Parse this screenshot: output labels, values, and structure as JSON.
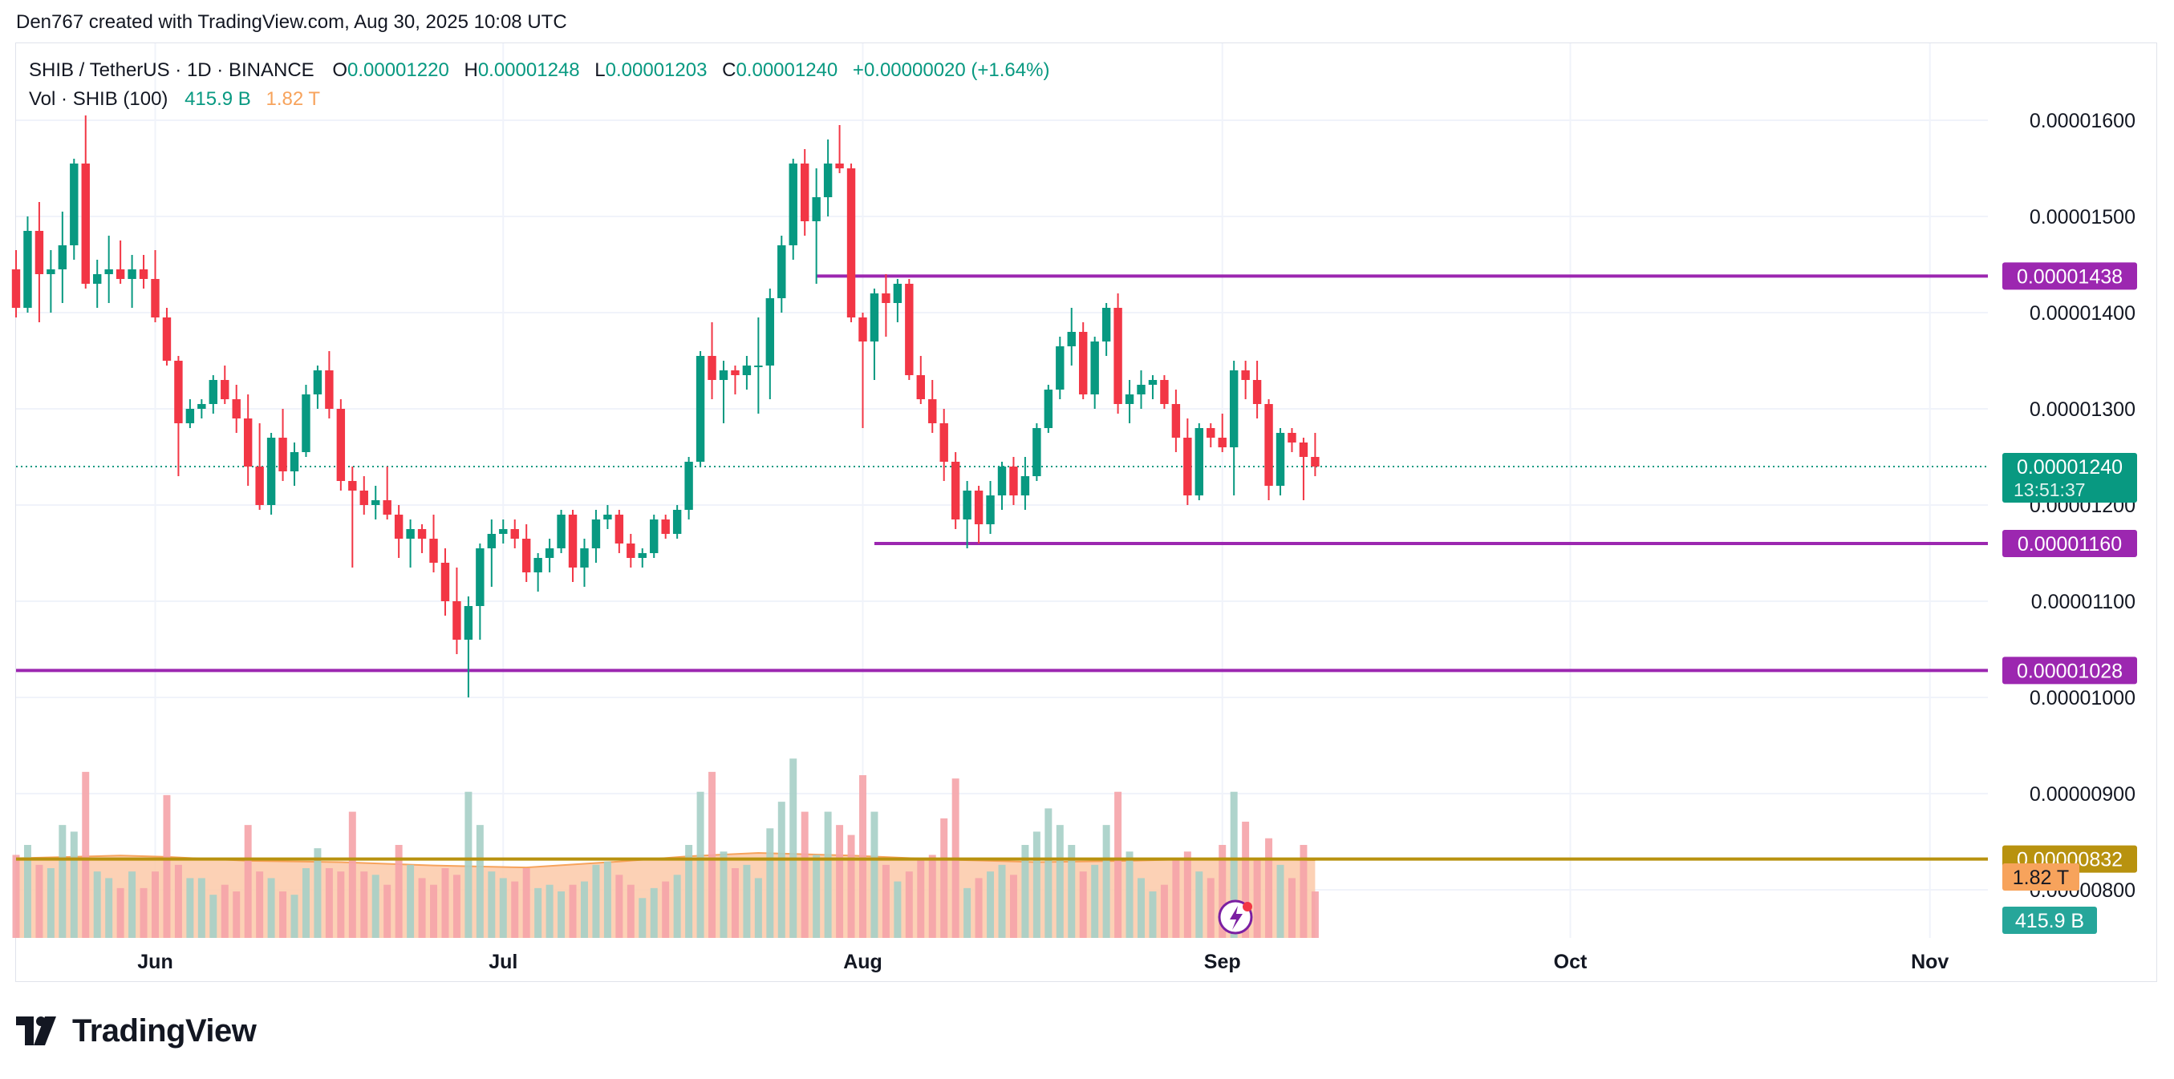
{
  "credit": "Den767 created with TradingView.com, Aug 30, 2025 10:08 UTC",
  "legend": {
    "symbol": "SHIB / TetherUS · 1D · BINANCE",
    "o_label": "O",
    "o_value": "0.00001220",
    "h_label": "H",
    "h_value": "0.00001248",
    "l_label": "L",
    "l_value": "0.00001203",
    "c_label": "C",
    "c_value": "0.00001240",
    "change": "+0.00000020 (+1.64%)",
    "vol_label": "Vol · SHIB (100)",
    "vol_buy": "415.9 B",
    "vol_ma": "1.82 T"
  },
  "logo_text": "TradingView",
  "colors": {
    "up": "#089981",
    "down": "#f23645",
    "vol_up": "#a6cfc6",
    "vol_down": "#f5a3a9",
    "level": "#9c27b0",
    "gold": "#b8920f",
    "ma_fill": "#fcc9a8",
    "ma_line": "#f7a35c"
  },
  "chart_data": {
    "type": "candlestick",
    "interval": "1D",
    "y_axis": {
      "min": 7.5e-06,
      "max": 1.68e-05,
      "ticks": [
        "0.00001600",
        "0.00001500",
        "0.00001400",
        "0.00001300",
        "0.00001200",
        "0.00001100",
        "0.00001000",
        "0.00000900",
        "0.00000800"
      ]
    },
    "x_axis": {
      "start": "2025-05-20",
      "end": "2025-11-06",
      "ticks": [
        {
          "date": "2025-06-01",
          "label": "Jun"
        },
        {
          "date": "2025-07-01",
          "label": "Jul"
        },
        {
          "date": "2025-08-01",
          "label": "Aug"
        },
        {
          "date": "2025-09-01",
          "label": "Sep"
        },
        {
          "date": "2025-10-01",
          "label": "Oct"
        },
        {
          "date": "2025-11-01",
          "label": "Nov"
        }
      ]
    },
    "price_labels": [
      {
        "value": "0.00001438",
        "color": "#9c27b0"
      },
      {
        "value": "0.00001240",
        "sub": "13:51:37",
        "color": "#089981"
      },
      {
        "value": "0.00001160",
        "color": "#9c27b0"
      },
      {
        "value": "0.00001028",
        "color": "#9c27b0"
      },
      {
        "value": "0.00000832",
        "color": "#b8920f"
      },
      {
        "value": "1.82 T",
        "color": "#f7a35c"
      },
      {
        "value": "415.9 B",
        "color": "#26a69a"
      }
    ],
    "levels": [
      {
        "value": 1.438e-05,
        "from": "2025-07-28",
        "to": "2025-11-06",
        "color": "#9c27b0"
      },
      {
        "value": 1.16e-05,
        "from": "2025-08-02",
        "to": "2025-11-06",
        "color": "#9c27b0"
      },
      {
        "value": 1.028e-05,
        "from": "2025-05-20",
        "to": "2025-11-06",
        "color": "#9c27b0"
      },
      {
        "value": 8.32e-06,
        "from": "2025-05-20",
        "to": "2025-11-06",
        "color": "#b8920f"
      }
    ],
    "volume_scale_max": 35,
    "candles": [
      {
        "date": "2025-05-20",
        "o": 14.45,
        "h": 14.65,
        "l": 13.95,
        "c": 14.05,
        "v": 12.5
      },
      {
        "date": "2025-05-21",
        "o": 14.05,
        "h": 15.0,
        "l": 14.0,
        "c": 14.85,
        "v": 14.0
      },
      {
        "date": "2025-05-22",
        "o": 14.85,
        "h": 15.15,
        "l": 13.9,
        "c": 14.4,
        "v": 11.0
      },
      {
        "date": "2025-05-23",
        "o": 14.4,
        "h": 14.65,
        "l": 14.0,
        "c": 14.45,
        "v": 10.5
      },
      {
        "date": "2025-05-24",
        "o": 14.45,
        "h": 15.05,
        "l": 14.1,
        "c": 14.7,
        "v": 17.0
      },
      {
        "date": "2025-05-25",
        "o": 14.7,
        "h": 15.6,
        "l": 14.55,
        "c": 15.55,
        "v": 16.0
      },
      {
        "date": "2025-05-26",
        "o": 15.55,
        "h": 16.05,
        "l": 14.25,
        "c": 14.3,
        "v": 25.0
      },
      {
        "date": "2025-05-27",
        "o": 14.3,
        "h": 14.55,
        "l": 14.05,
        "c": 14.4,
        "v": 10.0
      },
      {
        "date": "2025-05-28",
        "o": 14.4,
        "h": 14.8,
        "l": 14.1,
        "c": 14.45,
        "v": 9.0
      },
      {
        "date": "2025-05-29",
        "o": 14.45,
        "h": 14.75,
        "l": 14.3,
        "c": 14.35,
        "v": 7.5
      },
      {
        "date": "2025-05-30",
        "o": 14.35,
        "h": 14.6,
        "l": 14.05,
        "c": 14.45,
        "v": 10.0
      },
      {
        "date": "2025-05-31",
        "o": 14.45,
        "h": 14.6,
        "l": 14.25,
        "c": 14.35,
        "v": 7.5
      },
      {
        "date": "2025-06-01",
        "o": 14.35,
        "h": 14.65,
        "l": 13.9,
        "c": 13.95,
        "v": 10.0
      },
      {
        "date": "2025-06-02",
        "o": 13.95,
        "h": 14.05,
        "l": 13.45,
        "c": 13.5,
        "v": 21.5
      },
      {
        "date": "2025-06-03",
        "o": 13.5,
        "h": 13.55,
        "l": 12.3,
        "c": 12.85,
        "v": 11.0
      },
      {
        "date": "2025-06-04",
        "o": 12.85,
        "h": 13.1,
        "l": 12.8,
        "c": 13.0,
        "v": 9.0
      },
      {
        "date": "2025-06-05",
        "o": 13.0,
        "h": 13.1,
        "l": 12.9,
        "c": 13.05,
        "v": 9.0
      },
      {
        "date": "2025-06-06",
        "o": 13.05,
        "h": 13.35,
        "l": 12.95,
        "c": 13.3,
        "v": 6.5
      },
      {
        "date": "2025-06-07",
        "o": 13.3,
        "h": 13.45,
        "l": 13.05,
        "c": 13.1,
        "v": 8.0
      },
      {
        "date": "2025-06-08",
        "o": 13.1,
        "h": 13.25,
        "l": 12.75,
        "c": 12.9,
        "v": 7.0
      },
      {
        "date": "2025-06-09",
        "o": 12.9,
        "h": 13.15,
        "l": 12.2,
        "c": 12.4,
        "v": 17.0
      },
      {
        "date": "2025-06-10",
        "o": 12.4,
        "h": 12.85,
        "l": 11.95,
        "c": 12.0,
        "v": 10.0
      },
      {
        "date": "2025-06-11",
        "o": 12.0,
        "h": 12.75,
        "l": 11.9,
        "c": 12.7,
        "v": 9.0
      },
      {
        "date": "2025-06-12",
        "o": 12.7,
        "h": 13.0,
        "l": 12.25,
        "c": 12.35,
        "v": 7.0
      },
      {
        "date": "2025-06-13",
        "o": 12.35,
        "h": 12.65,
        "l": 12.2,
        "c": 12.55,
        "v": 6.5
      },
      {
        "date": "2025-06-14",
        "o": 12.55,
        "h": 13.25,
        "l": 12.5,
        "c": 13.15,
        "v": 10.5
      },
      {
        "date": "2025-06-15",
        "o": 13.15,
        "h": 13.45,
        "l": 13.0,
        "c": 13.4,
        "v": 13.5
      },
      {
        "date": "2025-06-16",
        "o": 13.4,
        "h": 13.6,
        "l": 12.9,
        "c": 13.0,
        "v": 10.5
      },
      {
        "date": "2025-06-17",
        "o": 13.0,
        "h": 13.1,
        "l": 12.15,
        "c": 12.25,
        "v": 10.0
      },
      {
        "date": "2025-06-18",
        "o": 12.25,
        "h": 12.4,
        "l": 11.35,
        "c": 12.15,
        "v": 19.0
      },
      {
        "date": "2025-06-19",
        "o": 12.15,
        "h": 12.3,
        "l": 11.9,
        "c": 12.0,
        "v": 10.0
      },
      {
        "date": "2025-06-20",
        "o": 12.0,
        "h": 12.2,
        "l": 11.85,
        "c": 12.05,
        "v": 9.5
      },
      {
        "date": "2025-06-21",
        "o": 12.05,
        "h": 12.4,
        "l": 11.85,
        "c": 11.9,
        "v": 8.0
      },
      {
        "date": "2025-06-22",
        "o": 11.9,
        "h": 12.0,
        "l": 11.45,
        "c": 11.65,
        "v": 14.0
      },
      {
        "date": "2025-06-23",
        "o": 11.65,
        "h": 11.85,
        "l": 11.35,
        "c": 11.75,
        "v": 11.0
      },
      {
        "date": "2025-06-24",
        "o": 11.75,
        "h": 11.8,
        "l": 11.5,
        "c": 11.65,
        "v": 9.0
      },
      {
        "date": "2025-06-25",
        "o": 11.65,
        "h": 11.9,
        "l": 11.3,
        "c": 11.4,
        "v": 8.0
      },
      {
        "date": "2025-06-26",
        "o": 11.4,
        "h": 11.55,
        "l": 10.85,
        "c": 11.0,
        "v": 10.5
      },
      {
        "date": "2025-06-27",
        "o": 11.0,
        "h": 11.35,
        "l": 10.45,
        "c": 10.6,
        "v": 9.5
      },
      {
        "date": "2025-06-28",
        "o": 10.6,
        "h": 11.05,
        "l": 10.0,
        "c": 10.95,
        "v": 22.0
      },
      {
        "date": "2025-06-29",
        "o": 10.95,
        "h": 11.6,
        "l": 10.6,
        "c": 11.55,
        "v": 17.0
      },
      {
        "date": "2025-06-30",
        "o": 11.55,
        "h": 11.85,
        "l": 11.15,
        "c": 11.7,
        "v": 10.0
      },
      {
        "date": "2025-07-01",
        "o": 11.7,
        "h": 11.85,
        "l": 11.6,
        "c": 11.75,
        "v": 9.0
      },
      {
        "date": "2025-07-02",
        "o": 11.75,
        "h": 11.85,
        "l": 11.55,
        "c": 11.65,
        "v": 8.5
      },
      {
        "date": "2025-07-03",
        "o": 11.65,
        "h": 11.8,
        "l": 11.2,
        "c": 11.3,
        "v": 10.5
      },
      {
        "date": "2025-07-04",
        "o": 11.3,
        "h": 11.5,
        "l": 11.1,
        "c": 11.45,
        "v": 7.5
      },
      {
        "date": "2025-07-05",
        "o": 11.45,
        "h": 11.65,
        "l": 11.3,
        "c": 11.55,
        "v": 8.0
      },
      {
        "date": "2025-07-06",
        "o": 11.55,
        "h": 11.95,
        "l": 11.5,
        "c": 11.9,
        "v": 7.0
      },
      {
        "date": "2025-07-07",
        "o": 11.9,
        "h": 11.95,
        "l": 11.2,
        "c": 11.35,
        "v": 8.0
      },
      {
        "date": "2025-07-08",
        "o": 11.35,
        "h": 11.65,
        "l": 11.15,
        "c": 11.55,
        "v": 8.5
      },
      {
        "date": "2025-07-09",
        "o": 11.55,
        "h": 11.95,
        "l": 11.4,
        "c": 11.85,
        "v": 11.0
      },
      {
        "date": "2025-07-10",
        "o": 11.85,
        "h": 12.0,
        "l": 11.75,
        "c": 11.9,
        "v": 11.5
      },
      {
        "date": "2025-07-11",
        "o": 11.9,
        "h": 11.95,
        "l": 11.5,
        "c": 11.6,
        "v": 9.5
      },
      {
        "date": "2025-07-12",
        "o": 11.6,
        "h": 11.7,
        "l": 11.35,
        "c": 11.45,
        "v": 8.0
      },
      {
        "date": "2025-07-13",
        "o": 11.45,
        "h": 11.55,
        "l": 11.35,
        "c": 11.5,
        "v": 6.0
      },
      {
        "date": "2025-07-14",
        "o": 11.5,
        "h": 11.9,
        "l": 11.45,
        "c": 11.85,
        "v": 7.5
      },
      {
        "date": "2025-07-15",
        "o": 11.85,
        "h": 11.9,
        "l": 11.65,
        "c": 11.7,
        "v": 8.5
      },
      {
        "date": "2025-07-16",
        "o": 11.7,
        "h": 12.0,
        "l": 11.65,
        "c": 11.95,
        "v": 9.5
      },
      {
        "date": "2025-07-17",
        "o": 11.95,
        "h": 12.5,
        "l": 11.85,
        "c": 12.45,
        "v": 14.0
      },
      {
        "date": "2025-07-18",
        "o": 12.45,
        "h": 13.6,
        "l": 12.4,
        "c": 13.55,
        "v": 22.0
      },
      {
        "date": "2025-07-19",
        "o": 13.55,
        "h": 13.9,
        "l": 13.1,
        "c": 13.3,
        "v": 25.0
      },
      {
        "date": "2025-07-20",
        "o": 13.3,
        "h": 13.5,
        "l": 12.85,
        "c": 13.4,
        "v": 13.0
      },
      {
        "date": "2025-07-21",
        "o": 13.4,
        "h": 13.45,
        "l": 13.15,
        "c": 13.35,
        "v": 10.5
      },
      {
        "date": "2025-07-22",
        "o": 13.35,
        "h": 13.55,
        "l": 13.2,
        "c": 13.45,
        "v": 11.0
      },
      {
        "date": "2025-07-23",
        "o": 13.45,
        "h": 13.95,
        "l": 12.95,
        "c": 13.45,
        "v": 9.0
      },
      {
        "date": "2025-07-24",
        "o": 13.45,
        "h": 14.25,
        "l": 13.1,
        "c": 14.15,
        "v": 16.5
      },
      {
        "date": "2025-07-25",
        "o": 14.15,
        "h": 14.8,
        "l": 14.0,
        "c": 14.7,
        "v": 20.5
      },
      {
        "date": "2025-07-26",
        "o": 14.7,
        "h": 15.6,
        "l": 14.55,
        "c": 15.55,
        "v": 27.0
      },
      {
        "date": "2025-07-27",
        "o": 15.55,
        "h": 15.7,
        "l": 14.8,
        "c": 14.95,
        "v": 19.0
      },
      {
        "date": "2025-07-28",
        "o": 14.95,
        "h": 15.5,
        "l": 14.3,
        "c": 15.2,
        "v": 12.5
      },
      {
        "date": "2025-07-29",
        "o": 15.2,
        "h": 15.8,
        "l": 15.0,
        "c": 15.55,
        "v": 19.0
      },
      {
        "date": "2025-07-30",
        "o": 15.55,
        "h": 15.95,
        "l": 15.45,
        "c": 15.5,
        "v": 17.0
      },
      {
        "date": "2025-07-31",
        "o": 15.5,
        "h": 15.55,
        "l": 13.9,
        "c": 13.95,
        "v": 15.5
      },
      {
        "date": "2025-08-01",
        "o": 13.95,
        "h": 14.0,
        "l": 12.8,
        "c": 13.7,
        "v": 24.5
      },
      {
        "date": "2025-08-02",
        "o": 13.7,
        "h": 14.25,
        "l": 13.3,
        "c": 14.2,
        "v": 19.0
      },
      {
        "date": "2025-08-03",
        "o": 14.2,
        "h": 14.4,
        "l": 13.75,
        "c": 14.1,
        "v": 11.0
      },
      {
        "date": "2025-08-04",
        "o": 14.1,
        "h": 14.35,
        "l": 13.9,
        "c": 14.3,
        "v": 8.5
      },
      {
        "date": "2025-08-05",
        "o": 14.3,
        "h": 14.35,
        "l": 13.3,
        "c": 13.35,
        "v": 10.0
      },
      {
        "date": "2025-08-06",
        "o": 13.35,
        "h": 13.55,
        "l": 13.05,
        "c": 13.1,
        "v": 12.0
      },
      {
        "date": "2025-08-07",
        "o": 13.1,
        "h": 13.3,
        "l": 12.75,
        "c": 12.85,
        "v": 12.5
      },
      {
        "date": "2025-08-08",
        "o": 12.85,
        "h": 13.0,
        "l": 12.25,
        "c": 12.45,
        "v": 18.0
      },
      {
        "date": "2025-08-09",
        "o": 12.45,
        "h": 12.55,
        "l": 11.75,
        "c": 11.85,
        "v": 24.0
      },
      {
        "date": "2025-08-10",
        "o": 11.85,
        "h": 12.25,
        "l": 11.55,
        "c": 12.15,
        "v": 7.5
      },
      {
        "date": "2025-08-11",
        "o": 12.15,
        "h": 12.2,
        "l": 11.6,
        "c": 11.8,
        "v": 9.0
      },
      {
        "date": "2025-08-12",
        "o": 11.8,
        "h": 12.25,
        "l": 11.7,
        "c": 12.1,
        "v": 10.0
      },
      {
        "date": "2025-08-13",
        "o": 12.1,
        "h": 12.45,
        "l": 11.95,
        "c": 12.4,
        "v": 11.0
      },
      {
        "date": "2025-08-14",
        "o": 12.4,
        "h": 12.5,
        "l": 12.0,
        "c": 12.1,
        "v": 9.5
      },
      {
        "date": "2025-08-15",
        "o": 12.1,
        "h": 12.5,
        "l": 11.95,
        "c": 12.3,
        "v": 14.0
      },
      {
        "date": "2025-08-16",
        "o": 12.3,
        "h": 12.85,
        "l": 12.25,
        "c": 12.8,
        "v": 16.0
      },
      {
        "date": "2025-08-17",
        "o": 12.8,
        "h": 13.25,
        "l": 12.75,
        "c": 13.2,
        "v": 19.5
      },
      {
        "date": "2025-08-18",
        "o": 13.2,
        "h": 13.75,
        "l": 13.1,
        "c": 13.65,
        "v": 17.0
      },
      {
        "date": "2025-08-19",
        "o": 13.65,
        "h": 14.05,
        "l": 13.45,
        "c": 13.8,
        "v": 14.0
      },
      {
        "date": "2025-08-20",
        "o": 13.8,
        "h": 13.9,
        "l": 13.1,
        "c": 13.15,
        "v": 10.0
      },
      {
        "date": "2025-08-21",
        "o": 13.15,
        "h": 13.75,
        "l": 13.0,
        "c": 13.7,
        "v": 11.0
      },
      {
        "date": "2025-08-22",
        "o": 13.7,
        "h": 14.1,
        "l": 13.55,
        "c": 14.05,
        "v": 17.0
      },
      {
        "date": "2025-08-23",
        "o": 14.05,
        "h": 14.2,
        "l": 12.95,
        "c": 13.05,
        "v": 22.0
      },
      {
        "date": "2025-08-24",
        "o": 13.05,
        "h": 13.3,
        "l": 12.85,
        "c": 13.15,
        "v": 13.0
      },
      {
        "date": "2025-08-25",
        "o": 13.15,
        "h": 13.4,
        "l": 13.0,
        "c": 13.25,
        "v": 9.0
      },
      {
        "date": "2025-08-26",
        "o": 13.25,
        "h": 13.35,
        "l": 13.1,
        "c": 13.3,
        "v": 7.0
      },
      {
        "date": "2025-08-27",
        "o": 13.3,
        "h": 13.35,
        "l": 13.0,
        "c": 13.05,
        "v": 8.0
      },
      {
        "date": "2025-08-28",
        "o": 13.05,
        "h": 13.2,
        "l": 12.55,
        "c": 12.7,
        "v": 12.0
      },
      {
        "date": "2025-08-29",
        "o": 12.7,
        "h": 12.9,
        "l": 12.0,
        "c": 12.1,
        "v": 13.0
      },
      {
        "date": "2025-08-30",
        "o": 12.1,
        "h": 12.85,
        "l": 12.05,
        "c": 12.8,
        "v": 10.0
      },
      {
        "date": "2025-08-31",
        "o": 12.8,
        "h": 12.85,
        "l": 12.6,
        "c": 12.7,
        "v": 9.0
      },
      {
        "date": "2025-09-01",
        "o": 12.7,
        "h": 12.95,
        "l": 12.55,
        "c": 12.6,
        "v": 14.0
      },
      {
        "date": "2025-09-02",
        "o": 12.6,
        "h": 13.5,
        "l": 12.1,
        "c": 13.4,
        "v": 22.0
      },
      {
        "date": "2025-09-03",
        "o": 13.4,
        "h": 13.5,
        "l": 13.1,
        "c": 13.3,
        "v": 17.5
      },
      {
        "date": "2025-09-04",
        "o": 13.3,
        "h": 13.5,
        "l": 12.9,
        "c": 13.05,
        "v": 12.0
      },
      {
        "date": "2025-09-05",
        "o": 13.05,
        "h": 13.1,
        "l": 12.05,
        "c": 12.2,
        "v": 15.0
      },
      {
        "date": "2025-09-06",
        "o": 12.2,
        "h": 12.8,
        "l": 12.1,
        "c": 12.75,
        "v": 11.0
      },
      {
        "date": "2025-09-07",
        "o": 12.75,
        "h": 12.8,
        "l": 12.55,
        "c": 12.65,
        "v": 9.0
      },
      {
        "date": "2025-09-08",
        "o": 12.65,
        "h": 12.7,
        "l": 12.05,
        "c": 12.5,
        "v": 14.0
      },
      {
        "date": "2025-09-09",
        "o": 12.5,
        "h": 12.75,
        "l": 12.3,
        "c": 12.4,
        "v": 7.0
      }
    ],
    "volume_ma": [
      [
        0,
        12.0
      ],
      [
        9,
        12.4
      ],
      [
        13,
        12.2
      ],
      [
        20,
        11.6
      ],
      [
        28,
        11.4
      ],
      [
        36,
        10.9
      ],
      [
        44,
        10.6
      ],
      [
        52,
        11.5
      ],
      [
        58,
        12.3
      ],
      [
        64,
        12.8
      ],
      [
        72,
        12.4
      ],
      [
        80,
        11.8
      ],
      [
        88,
        11.4
      ],
      [
        96,
        11.6
      ],
      [
        104,
        12.0
      ],
      [
        112,
        11.7
      ]
    ]
  }
}
